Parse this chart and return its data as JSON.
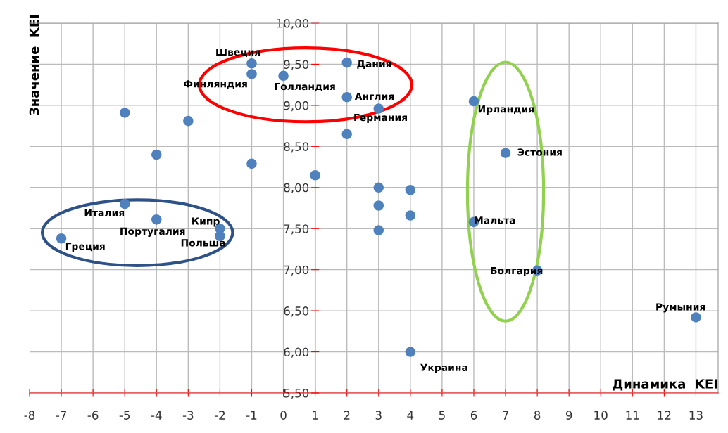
{
  "chart_data": {
    "type": "scatter",
    "xlabel": "Динамика  KEI",
    "ylabel": "Значение  KEI",
    "series": [
      {
        "color": "#4f81bd",
        "x": [
          -1,
          -1,
          0,
          2,
          2,
          3,
          2,
          -5,
          -3,
          -4,
          -1,
          1,
          3,
          4,
          3,
          4,
          3,
          -5,
          -4,
          -2,
          -2,
          -7,
          6,
          7,
          6,
          8,
          13,
          4
        ],
        "values": [
          9.51,
          9.38,
          9.36,
          9.52,
          9.1,
          8.96,
          8.65,
          8.91,
          8.81,
          8.4,
          8.29,
          8.15,
          8.0,
          7.97,
          7.78,
          7.66,
          7.48,
          7.8,
          7.61,
          7.5,
          7.41,
          7.38,
          9.05,
          8.42,
          7.58,
          6.99,
          6.42,
          6.0
        ]
      }
    ],
    "marker": "circle",
    "grid": true,
    "xlim": [
      -8,
      13.7
    ],
    "xticks": [
      -8,
      -7,
      -6,
      -5,
      -4,
      -3,
      -2,
      -1,
      0,
      1,
      2,
      3,
      4,
      5,
      6,
      7,
      8,
      9,
      10,
      11,
      12,
      13
    ],
    "ylim": [
      5.5,
      10
    ],
    "yticks": [
      {
        "value": 5.5,
        "label": "5,50"
      },
      {
        "value": 6,
        "label": "6,00"
      },
      {
        "value": 6.5,
        "label": "6,50"
      },
      {
        "value": 7,
        "label": "7,00"
      },
      {
        "value": 7.5,
        "label": "7,50"
      },
      {
        "value": 8,
        "label": "8,00"
      },
      {
        "value": 8.5,
        "label": "8,50"
      },
      {
        "value": 9,
        "label": "9,00"
      },
      {
        "value": 9.5,
        "label": "9,50"
      },
      {
        "value": 10,
        "label": "10,00"
      }
    ],
    "annotations": [
      {
        "text": "Швеция",
        "x": -1,
        "y": 9.51
      },
      {
        "text": "Финляндия",
        "x": -1,
        "y": 9.38
      },
      {
        "text": "Голландия",
        "x": 0,
        "y": 9.36
      },
      {
        "text": "Дания",
        "x": 2,
        "y": 9.52
      },
      {
        "text": "Англия",
        "x": 2,
        "y": 9.1
      },
      {
        "text": "Германия",
        "x": 3,
        "y": 8.96
      },
      {
        "text": "Италия",
        "x": -5,
        "y": 7.8
      },
      {
        "text": "Португалия",
        "x": -4,
        "y": 7.61
      },
      {
        "text": "Кипр",
        "x": -2,
        "y": 7.5
      },
      {
        "text": "Польша",
        "x": -2,
        "y": 7.41
      },
      {
        "text": "Греция",
        "x": -7,
        "y": 7.38
      },
      {
        "text": "Ирландия",
        "x": 6,
        "y": 9.05
      },
      {
        "text": "Эстония",
        "x": 7,
        "y": 8.42
      },
      {
        "text": "Мальта",
        "x": 6,
        "y": 7.58
      },
      {
        "text": "Болгария",
        "x": 8,
        "y": 6.99
      },
      {
        "text": "Румыния",
        "x": 13,
        "y": 6.42
      },
      {
        "text": "Украина",
        "x": 4,
        "y": 6.0
      }
    ]
  }
}
